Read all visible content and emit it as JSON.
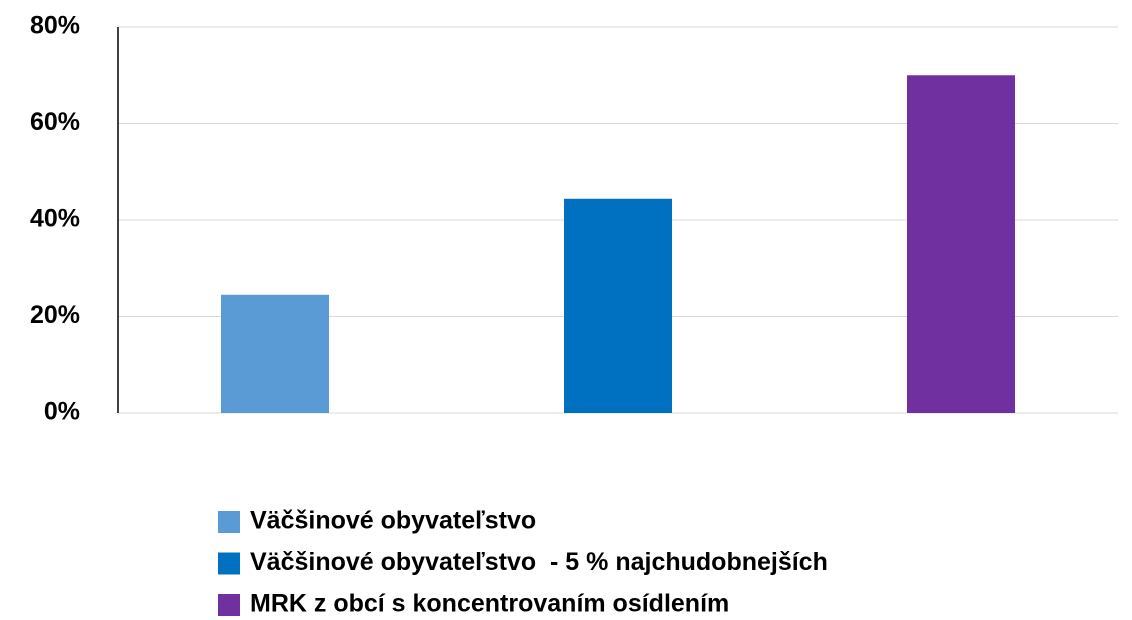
{
  "chart_data": {
    "type": "bar",
    "categories": [
      null
    ],
    "series": [
      {
        "name": "Väčšinové obyvateľstvo",
        "color": "#5b9bd5",
        "values": [
          24.5
        ]
      },
      {
        "name": "Väčšinové obyvateľstvo  - 5 % najchudobnejších",
        "color": "#0070c0",
        "values": [
          44.4
        ]
      },
      {
        "name": "MRK z obcí s koncentrovaním osídlením",
        "color": "#7030a0",
        "values": [
          70.0
        ]
      }
    ],
    "ylim": [
      0,
      80
    ],
    "yticks": [
      {
        "value": 0,
        "label": "0%"
      },
      {
        "value": 20,
        "label": "20%"
      },
      {
        "value": 40,
        "label": "40%"
      },
      {
        "value": 60,
        "label": "60%"
      },
      {
        "value": 80,
        "label": "80%"
      }
    ],
    "grid": true,
    "legend": "bottom"
  }
}
